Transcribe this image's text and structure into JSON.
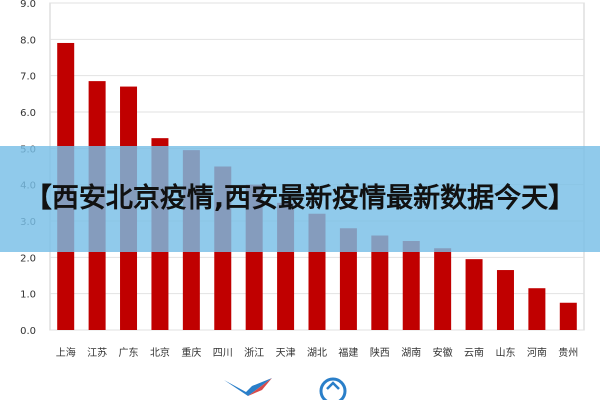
{
  "banner": {
    "title": "【西安北京疫情,西安最新疫情最新数据今天】"
  },
  "colors": {
    "bar": "#c00000",
    "banner": "#78bee6"
  },
  "chart_data": {
    "type": "bar",
    "categories": [
      "上海",
      "江苏",
      "广东",
      "北京",
      "重庆",
      "四川",
      "浙江",
      "天津",
      "湖北",
      "福建",
      "陕西",
      "湖南",
      "安徽",
      "云南",
      "山东",
      "河南",
      "贵州"
    ],
    "values": [
      7.9,
      6.85,
      6.7,
      5.28,
      4.95,
      4.5,
      4.0,
      3.5,
      3.2,
      2.8,
      2.6,
      2.45,
      2.25,
      1.95,
      1.65,
      1.15,
      0.75
    ],
    "yticks": [
      "0.0",
      "1.0",
      "2.0",
      "3.0",
      "4.0",
      "5.0",
      "6.0",
      "7.0",
      "8.0",
      "9.0"
    ],
    "ylim": [
      0,
      9
    ],
    "grid": true,
    "title": "",
    "xlabel": "",
    "ylabel": ""
  },
  "icons": {
    "left_logo": "bird-logo-icon",
    "right_logo": "refresh-circle-logo-icon"
  }
}
